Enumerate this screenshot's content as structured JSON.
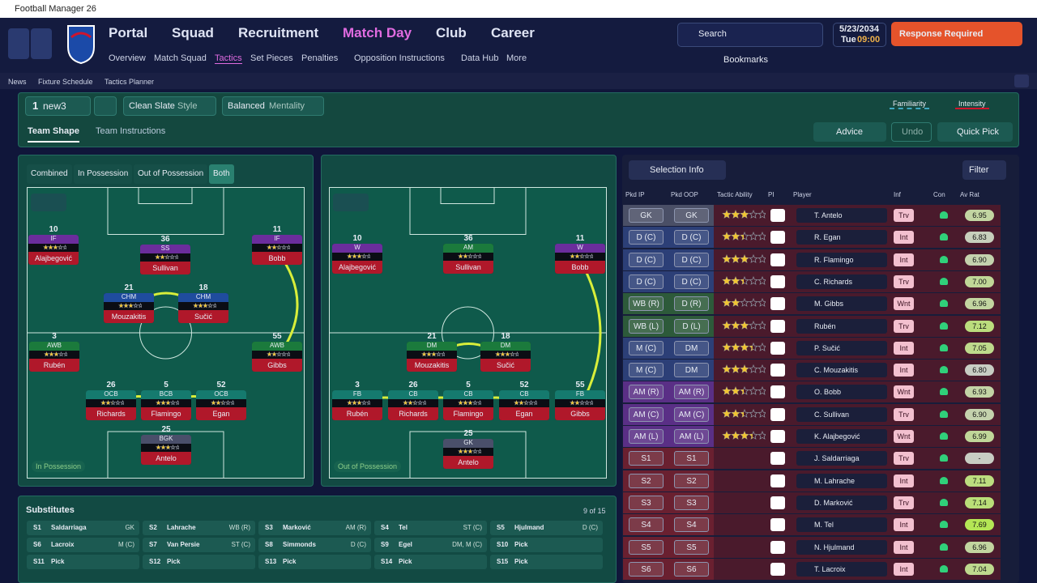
{
  "window": {
    "title": "Football Manager 26"
  },
  "nav": {
    "main": [
      "Portal",
      "Squad",
      "Recruitment",
      "Match Day",
      "Club",
      "Career"
    ],
    "sub": [
      "Overview",
      "Match Squad",
      "Tactics",
      "Set Pieces",
      "Penalties",
      "Opposition Instructions",
      "Data Hub",
      "More"
    ],
    "search": "Search",
    "date": "5/23/2034",
    "day": "Tue",
    "time": "09:00",
    "alert": "Response Required",
    "bookmarks": "Bookmarks"
  },
  "breadcrumb": [
    "News",
    "Fixture Schedule",
    "Tactics Planner"
  ],
  "tactic_bar": {
    "slot": "1",
    "name": "new3",
    "style": "Clean Slate",
    "style_label": "Style",
    "mentality": "Balanced",
    "mentality_label": "Mentality",
    "familiarity": "Familiarity",
    "intensity": "Intensity"
  },
  "tabs": [
    "Team Shape",
    "Team Instructions"
  ],
  "actions": [
    "Advice",
    "Undo",
    "Quick Pick"
  ],
  "view_modes": [
    "Combined",
    "In Possession",
    "Out of Possession",
    "Both"
  ],
  "pitches": [
    {
      "label": "In Possession",
      "players": [
        {
          "number": "10",
          "role": "IF",
          "name": "Alajbegović",
          "color": "#6b2d9c",
          "ability": 3.5
        },
        {
          "number": "36",
          "role": "SS",
          "name": "Sullivan",
          "color": "#6b2d9c",
          "ability": 2.5
        },
        {
          "number": "11",
          "role": "IF",
          "name": "Bobb",
          "color": "#6b2d9c",
          "ability": 2.5
        },
        {
          "number": "21",
          "role": "CHM",
          "name": "Mouzakitis",
          "color": "#1f4c9e",
          "ability": 3
        },
        {
          "number": "18",
          "role": "CHM",
          "name": "Sučić",
          "color": "#1f4c9e",
          "ability": 3.5
        },
        {
          "number": "3",
          "role": "AWB",
          "name": "Rubén",
          "color": "#1b7a3c",
          "ability": 3
        },
        {
          "number": "55",
          "role": "AWB",
          "name": "Gibbs",
          "color": "#1b7a3c",
          "ability": 2
        },
        {
          "number": "26",
          "role": "OCB",
          "name": "Richards",
          "color": "#157a6e",
          "ability": 2.5
        },
        {
          "number": "5",
          "role": "BCB",
          "name": "Flamingo",
          "color": "#157a6e",
          "ability": 3
        },
        {
          "number": "52",
          "role": "OCB",
          "name": "Egan",
          "color": "#157a6e",
          "ability": 2.5
        },
        {
          "number": "25",
          "role": "BGK",
          "name": "Antelo",
          "color": "#4a4f6a",
          "ability": 3
        }
      ]
    },
    {
      "label": "Out of Possession",
      "players": [
        {
          "number": "10",
          "role": "W",
          "name": "Alajbegović",
          "color": "#6b2d9c",
          "ability": 3.5
        },
        {
          "number": "36",
          "role": "AM",
          "name": "Sullivan",
          "color": "#1b7a3c",
          "ability": 2.5
        },
        {
          "number": "11",
          "role": "W",
          "name": "Bobb",
          "color": "#6b2d9c",
          "ability": 2.5
        },
        {
          "number": "21",
          "role": "DM",
          "name": "Mouzakitis",
          "color": "#1b7a3c",
          "ability": 3
        },
        {
          "number": "18",
          "role": "DM",
          "name": "Sučić",
          "color": "#1b7a3c",
          "ability": 3.5
        },
        {
          "number": "3",
          "role": "FB",
          "name": "Rubén",
          "color": "#157a6e",
          "ability": 3
        },
        {
          "number": "26",
          "role": "CB",
          "name": "Richards",
          "color": "#157a6e",
          "ability": 2.5
        },
        {
          "number": "5",
          "role": "CB",
          "name": "Flamingo",
          "color": "#157a6e",
          "ability": 3
        },
        {
          "number": "52",
          "role": "CB",
          "name": "Egan",
          "color": "#157a6e",
          "ability": 2.5
        },
        {
          "number": "55",
          "role": "FB",
          "name": "Gibbs",
          "color": "#157a6e",
          "ability": 2
        },
        {
          "number": "25",
          "role": "GK",
          "name": "Antelo",
          "color": "#4a4f6a",
          "ability": 3
        }
      ]
    }
  ],
  "selection": {
    "title": "Selection Info",
    "filter": "Filter",
    "columns": [
      "Pkd IP",
      "Pkd OOP",
      "Tactic Ability",
      "PI",
      "Player",
      "Inf",
      "Con",
      "Av Rat"
    ],
    "rows": [
      {
        "ip": "GK",
        "oop": "GK",
        "ability": 3,
        "player": "T. Antelo",
        "inf": "Trv",
        "rat": "6.95",
        "color": "#4a4f66"
      },
      {
        "ip": "D (C)",
        "oop": "D (C)",
        "ability": 2.5,
        "player": "R. Egan",
        "inf": "Int",
        "rat": "6.83",
        "color": "#2c3f77"
      },
      {
        "ip": "D (C)",
        "oop": "D (C)",
        "ability": 3,
        "player": "R. Flamingo",
        "inf": "Int",
        "rat": "6.90",
        "color": "#2c3f77"
      },
      {
        "ip": "D (C)",
        "oop": "D (C)",
        "ability": 2.5,
        "player": "C. Richards",
        "inf": "Trv",
        "rat": "7.00",
        "color": "#2c3f77"
      },
      {
        "ip": "WB (R)",
        "oop": "D (R)",
        "ability": 2,
        "player": "M. Gibbs",
        "inf": "Wnt",
        "rat": "6.96",
        "color": "#2d5a3a"
      },
      {
        "ip": "WB (L)",
        "oop": "D (L)",
        "ability": 3,
        "player": "Rubén",
        "inf": "Trv",
        "rat": "7.12",
        "color": "#2d5a3a"
      },
      {
        "ip": "M (C)",
        "oop": "DM",
        "ability": 3.5,
        "player": "P. Sučić",
        "inf": "Int",
        "rat": "7.05",
        "color": "#2c3f77"
      },
      {
        "ip": "M (C)",
        "oop": "DM",
        "ability": 3,
        "player": "C. Mouzakitis",
        "inf": "Int",
        "rat": "6.80",
        "color": "#2c3f77"
      },
      {
        "ip": "AM (R)",
        "oop": "AM (R)",
        "ability": 2.5,
        "player": "O. Bobb",
        "inf": "Wnt",
        "rat": "6.93",
        "color": "#5a2f86"
      },
      {
        "ip": "AM (C)",
        "oop": "AM (C)",
        "ability": 2.5,
        "player": "C. Sullivan",
        "inf": "Trv",
        "rat": "6.90",
        "color": "#5a2f86"
      },
      {
        "ip": "AM (L)",
        "oop": "AM (L)",
        "ability": 3.5,
        "player": "K. Alajbegović",
        "inf": "Wnt",
        "rat": "6.99",
        "color": "#5a2f86"
      },
      {
        "ip": "S1",
        "oop": "S1",
        "player": "J. Saldarriaga",
        "inf": "Trv",
        "rat": "-",
        "color": "#6a2030"
      },
      {
        "ip": "S2",
        "oop": "S2",
        "player": "M. Lahrache",
        "inf": "Int",
        "rat": "7.11",
        "color": "#6a2030"
      },
      {
        "ip": "S3",
        "oop": "S3",
        "player": "D. Marković",
        "inf": "Trv",
        "rat": "7.14",
        "color": "#6a2030"
      },
      {
        "ip": "S4",
        "oop": "S4",
        "player": "M. Tel",
        "inf": "Int",
        "rat": "7.69",
        "color": "#6a2030"
      },
      {
        "ip": "S5",
        "oop": "S5",
        "player": "N. Hjulmand",
        "inf": "Int",
        "rat": "6.96",
        "color": "#6a2030"
      },
      {
        "ip": "S6",
        "oop": "S6",
        "player": "T. Lacroix",
        "inf": "Int",
        "rat": "7.04",
        "color": "#6a2030"
      }
    ]
  },
  "substitutes": {
    "title": "Substitutes",
    "count": "9 of 15",
    "slots": [
      {
        "slot": "S1",
        "name": "Saldarriaga",
        "pos": "GK"
      },
      {
        "slot": "S2",
        "name": "Lahrache",
        "pos": "WB (R)"
      },
      {
        "slot": "S3",
        "name": "Marković",
        "pos": "AM (R)"
      },
      {
        "slot": "S4",
        "name": "Tel",
        "pos": "ST (C)"
      },
      {
        "slot": "S5",
        "name": "Hjulmand",
        "pos": "D (C)"
      },
      {
        "slot": "S6",
        "name": "Lacroix",
        "pos": "M (C)"
      },
      {
        "slot": "S7",
        "name": "Van Persie",
        "pos": "ST (C)"
      },
      {
        "slot": "S8",
        "name": "Simmonds",
        "pos": "D (C)"
      },
      {
        "slot": "S9",
        "name": "Egel",
        "pos": "DM, M (C)"
      },
      {
        "slot": "S10",
        "name": "Pick"
      },
      {
        "slot": "S11",
        "name": "Pick"
      },
      {
        "slot": "S12",
        "name": "Pick"
      },
      {
        "slot": "S13",
        "name": "Pick"
      },
      {
        "slot": "S14",
        "name": "Pick"
      },
      {
        "slot": "S15",
        "name": "Pick"
      }
    ]
  }
}
